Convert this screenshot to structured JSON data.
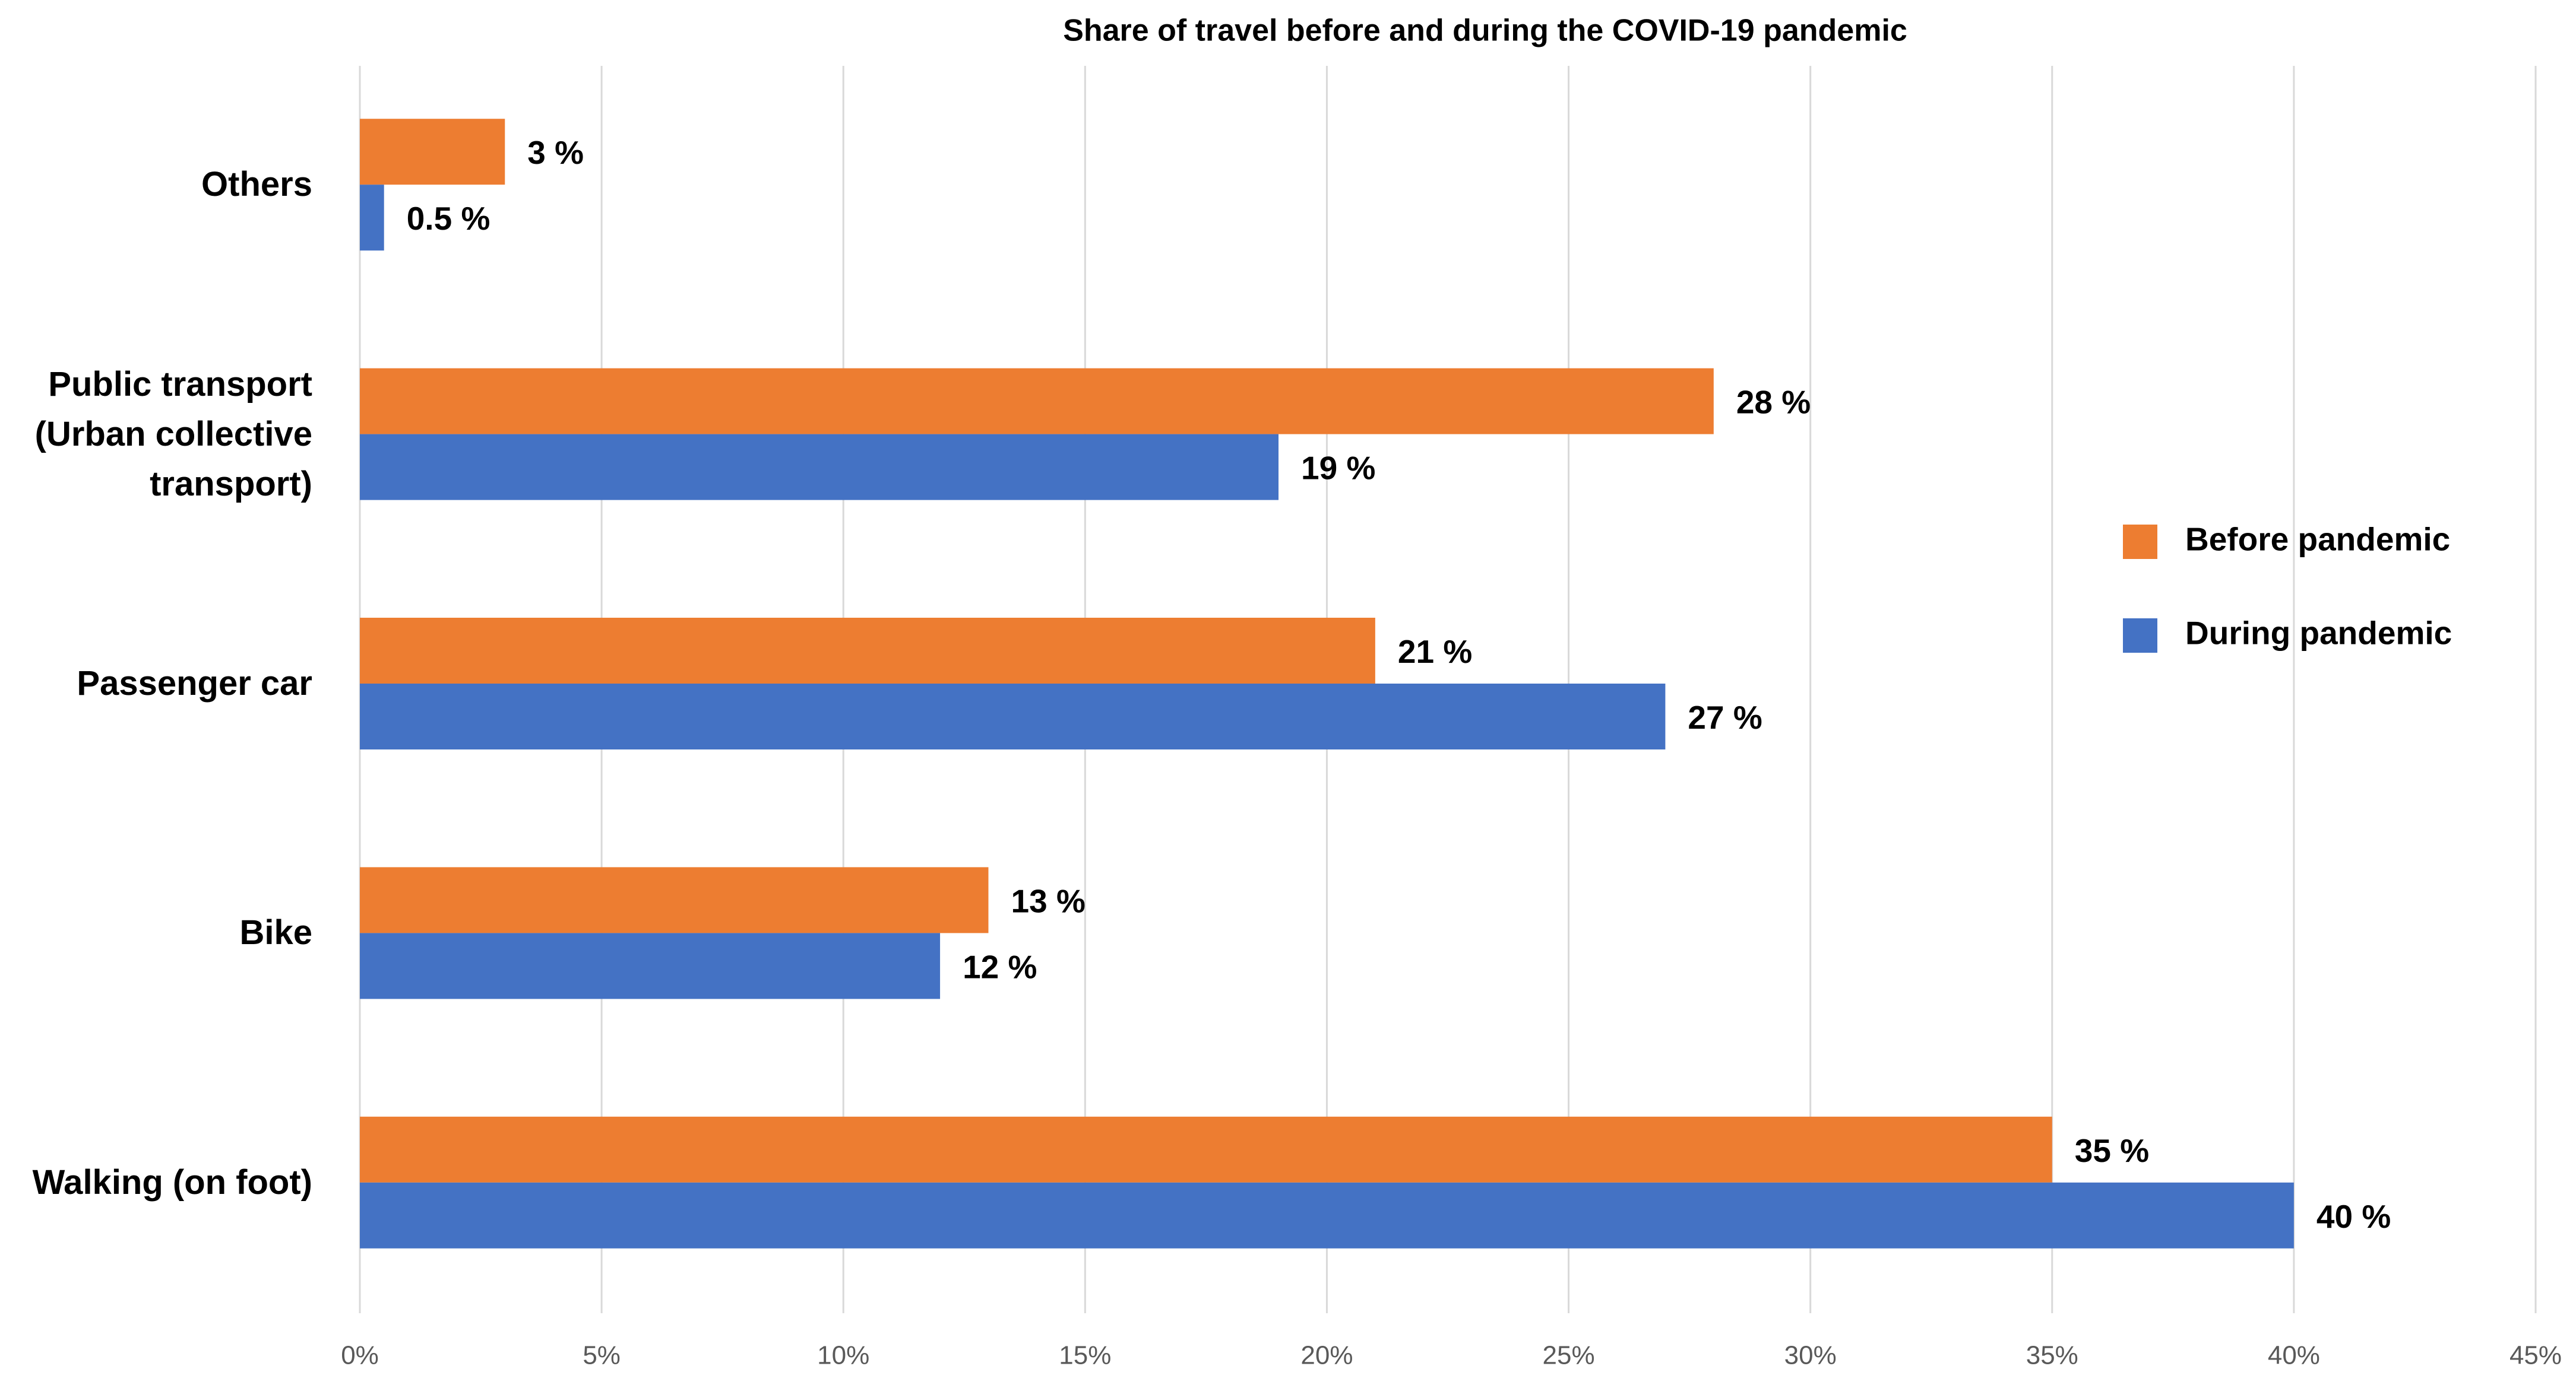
{
  "chart_data": {
    "type": "hbar",
    "title": "Share of travel before and during the COVID-19 pandemic",
    "categories": [
      "Others",
      "Public transport (Urban collective transport)",
      "Passenger car",
      "Bike",
      "Walking (on foot)"
    ],
    "series": [
      {
        "name": "Before pandemic",
        "color": "#ED7D31",
        "values": [
          3,
          28,
          21,
          13,
          35
        ],
        "value_labels": [
          "3 %",
          "28 %",
          "21 %",
          "13 %",
          "35 %"
        ]
      },
      {
        "name": "During pandemic",
        "color": "#4472C4",
        "values": [
          0.5,
          19,
          27,
          12,
          40
        ],
        "value_labels": [
          "0.5 %",
          "19 %",
          "27 %",
          "12 %",
          "40 %"
        ]
      }
    ],
    "xlim": [
      0,
      45
    ],
    "xticks": [
      {
        "value": 0,
        "label": "0%"
      },
      {
        "value": 5,
        "label": "5%"
      },
      {
        "value": 10,
        "label": "10%"
      },
      {
        "value": 15,
        "label": "15%"
      },
      {
        "value": 20,
        "label": "20%"
      },
      {
        "value": 25,
        "label": "25%"
      },
      {
        "value": 30,
        "label": "30%"
      },
      {
        "value": 35,
        "label": "35%"
      },
      {
        "value": 40,
        "label": "40%"
      },
      {
        "value": 45,
        "label": "45%"
      }
    ],
    "grid": true,
    "legend": "right"
  }
}
